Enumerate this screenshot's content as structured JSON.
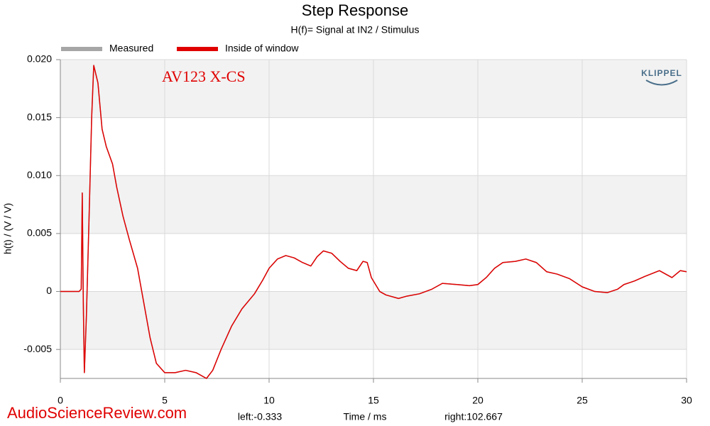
{
  "chart_data": {
    "type": "line",
    "title": "Step Response",
    "subtitle": "H(f)= Signal at IN2 / Stimulus",
    "y_label": "h(t) / (V / V)",
    "x_label": "Time / ms",
    "x_left_note": "left:-0.333",
    "x_right_note": "right:102.667",
    "annotation": "AV123 X-CS",
    "logo": "KLIPPEL",
    "watermark": "AudioScienceReview.com",
    "grid": true,
    "xlim": [
      0,
      30
    ],
    "xticks": [
      0,
      5,
      10,
      15,
      20,
      25,
      30
    ],
    "ylim": [
      -0.0075,
      0.02
    ],
    "yticks": [
      -0.005,
      0,
      0.005,
      {
        "value": 0.01,
        "label": "0.010"
      },
      0.015,
      {
        "value": 0.02,
        "label": "0.020"
      }
    ],
    "x": [
      0,
      0.9,
      1.0,
      1.05,
      1.1,
      1.15,
      1.25,
      1.4,
      1.5,
      1.6,
      1.8,
      2.0,
      2.2,
      2.5,
      2.7,
      3.0,
      3.3,
      3.7,
      4.0,
      4.3,
      4.6,
      5.0,
      5.5,
      6.0,
      6.5,
      7.0,
      7.3,
      7.7,
      8.2,
      8.7,
      9.3,
      9.7,
      10.0,
      10.4,
      10.8,
      11.2,
      11.6,
      12.0,
      12.3,
      12.6,
      13.0,
      13.4,
      13.8,
      14.2,
      14.5,
      14.7,
      14.9,
      15.3,
      15.6,
      16.2,
      16.6,
      17.2,
      17.8,
      18.3,
      19.0,
      19.6,
      20.0,
      20.4,
      20.8,
      21.2,
      21.8,
      22.3,
      22.8,
      23.3,
      23.8,
      24.4,
      25.0,
      25.6,
      26.2,
      26.7,
      27.0,
      27.5,
      28.0,
      28.7,
      29.3,
      29.7,
      30.0
    ],
    "series": [
      {
        "name": "Measured",
        "color": "#a6a6a6",
        "values": [
          0,
          0,
          0.0002,
          0.0085,
          -0.001,
          -0.007,
          -0.002,
          0.008,
          0.015,
          0.0195,
          0.018,
          0.014,
          0.0125,
          0.011,
          0.009,
          0.0065,
          0.0045,
          0.002,
          -0.001,
          -0.004,
          -0.0062,
          -0.007,
          -0.007,
          -0.0068,
          -0.007,
          -0.0075,
          -0.0068,
          -0.005,
          -0.003,
          -0.0015,
          -0.0002,
          0.001,
          0.002,
          0.0028,
          0.0031,
          0.0029,
          0.0025,
          0.0022,
          0.003,
          0.0035,
          0.0033,
          0.0026,
          0.002,
          0.0018,
          0.0026,
          0.0025,
          0.0012,
          0,
          -0.0003,
          -0.0006,
          -0.0004,
          -0.0002,
          0.0002,
          0.0007,
          0.0006,
          0.0005,
          0.0006,
          0.0012,
          0.002,
          0.0025,
          0.0026,
          0.0028,
          0.0025,
          0.0017,
          0.0015,
          0.0011,
          0.0004,
          0,
          -0.0001,
          0.0002,
          0.0006,
          0.0009,
          0.0013,
          0.0018,
          0.0012,
          0.0018,
          0.0017
        ]
      },
      {
        "name": "Inside of window",
        "color": "#e00000",
        "values": [
          0,
          0,
          0.0002,
          0.0085,
          -0.001,
          -0.007,
          -0.002,
          0.008,
          0.015,
          0.0195,
          0.018,
          0.014,
          0.0125,
          0.011,
          0.009,
          0.0065,
          0.0045,
          0.002,
          -0.001,
          -0.004,
          -0.0062,
          -0.007,
          -0.007,
          -0.0068,
          -0.007,
          -0.0075,
          -0.0068,
          -0.005,
          -0.003,
          -0.0015,
          -0.0002,
          0.001,
          0.002,
          0.0028,
          0.0031,
          0.0029,
          0.0025,
          0.0022,
          0.003,
          0.0035,
          0.0033,
          0.0026,
          0.002,
          0.0018,
          0.0026,
          0.0025,
          0.0012,
          0,
          -0.0003,
          -0.0006,
          -0.0004,
          -0.0002,
          0.0002,
          0.0007,
          0.0006,
          0.0005,
          0.0006,
          0.0012,
          0.002,
          0.0025,
          0.0026,
          0.0028,
          0.0025,
          0.0017,
          0.0015,
          0.0011,
          0.0004,
          0,
          -0.0001,
          0.0002,
          0.0006,
          0.0009,
          0.0013,
          0.0018,
          0.0012,
          0.0018,
          0.0017
        ]
      }
    ]
  }
}
